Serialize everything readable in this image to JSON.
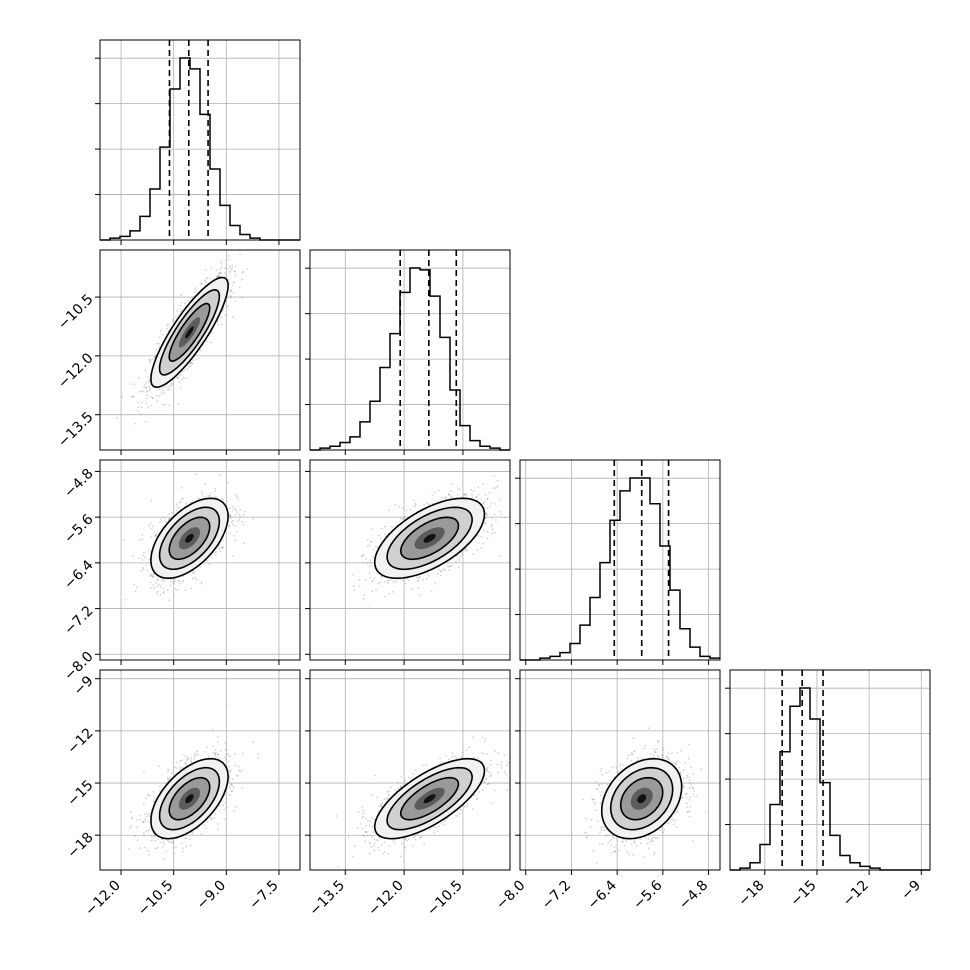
{
  "chart_data": {
    "type": "corner",
    "parameters": [
      {
        "index": 0,
        "range": [
          -12.6,
          -6.9
        ],
        "ticks": [
          -12.0,
          -10.5,
          -9.0,
          -7.5
        ],
        "tick_labels": [
          "−12.0",
          "−10.5",
          "−9.0",
          "−7.5"
        ],
        "quantiles": [
          -10.62,
          -10.07,
          -9.52
        ],
        "histogram": {
          "bin_start": -12.6,
          "bin_width": 0.285,
          "counts": [
            0,
            1,
            2,
            5,
            13,
            28,
            51,
            83,
            100,
            94,
            69,
            39,
            19,
            8,
            3,
            1,
            0,
            0,
            0,
            0
          ]
        }
      },
      {
        "index": 1,
        "range": [
          -14.4,
          -9.3
        ],
        "ticks": [
          -13.5,
          -12.0,
          -10.5
        ],
        "tick_labels": [
          "−13.5",
          "−12.0",
          "−10.5"
        ],
        "quantiles": [
          -12.1,
          -11.37,
          -10.67
        ],
        "histogram": {
          "bin_start": -14.4,
          "bin_width": 0.255,
          "counts": [
            0,
            1,
            2,
            4,
            7,
            15,
            26,
            44,
            62,
            84,
            97,
            96,
            82,
            60,
            32,
            13,
            5,
            2,
            1,
            0
          ]
        }
      },
      {
        "index": 2,
        "range": [
          -8.1,
          -4.6
        ],
        "ticks": [
          -8.0,
          -7.2,
          -6.4,
          -5.6,
          -4.8
        ],
        "tick_labels": [
          "−8.0",
          "−7.2",
          "−6.4",
          "−5.6",
          "−4.8"
        ],
        "quantiles": [
          -6.45,
          -5.97,
          -5.5
        ],
        "histogram": {
          "bin_start": -8.1,
          "bin_width": 0.175,
          "counts": [
            0,
            0,
            1,
            2,
            4,
            9,
            19,
            34,
            53,
            76,
            92,
            99,
            99,
            85,
            62,
            38,
            17,
            7,
            2,
            1
          ]
        }
      },
      {
        "index": 3,
        "range": [
          -20.0,
          -8.5
        ],
        "ticks": [
          -18,
          -15,
          -12,
          -9
        ],
        "tick_labels": [
          "−18",
          "−15",
          "−12",
          "−9"
        ],
        "quantiles": [
          -17.0,
          -15.85,
          -14.65
        ],
        "histogram": {
          "bin_start": -20.0,
          "bin_width": 0.575,
          "counts": [
            0,
            1,
            4,
            14,
            36,
            65,
            90,
            100,
            83,
            48,
            19,
            8,
            4,
            2,
            1,
            0,
            0,
            0,
            0,
            0
          ]
        }
      }
    ],
    "pairs": [
      {
        "x": 0,
        "y": 1,
        "center": [
          -10.05,
          -11.4
        ],
        "sd": [
          0.55,
          0.7
        ],
        "rho": 0.85
      },
      {
        "x": 0,
        "y": 2,
        "center": [
          -10.05,
          -5.97
        ],
        "sd": [
          0.55,
          0.35
        ],
        "rho": 0.55
      },
      {
        "x": 1,
        "y": 2,
        "center": [
          -11.35,
          -5.97
        ],
        "sd": [
          0.7,
          0.35
        ],
        "rho": 0.6
      },
      {
        "x": 0,
        "y": 3,
        "center": [
          -10.05,
          -15.9
        ],
        "sd": [
          0.55,
          1.15
        ],
        "rho": 0.55
      },
      {
        "x": 1,
        "y": 3,
        "center": [
          -11.35,
          -15.9
        ],
        "sd": [
          0.7,
          1.15
        ],
        "rho": 0.7
      },
      {
        "x": 2,
        "y": 3,
        "center": [
          -5.97,
          -15.9
        ],
        "sd": [
          0.35,
          1.15
        ],
        "rho": 0.3
      }
    ],
    "grid": true,
    "colors": {
      "ink": "#000000",
      "grid": "#b0b0b0",
      "points": "#808080"
    }
  }
}
